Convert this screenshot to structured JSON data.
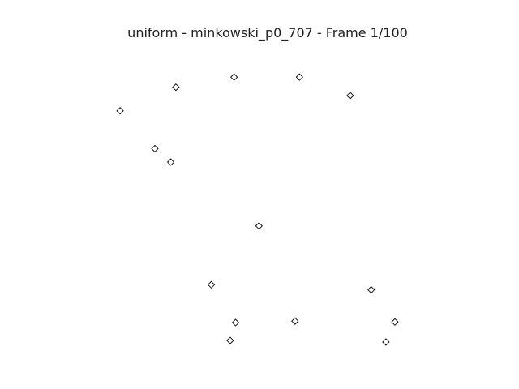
{
  "chart_data": {
    "type": "scatter",
    "title": "uniform - minkowski_p0_707 - Frame 1/100",
    "xlabel": "",
    "ylabel": "",
    "xlim": [
      0,
      1
    ],
    "ylim": [
      0,
      1
    ],
    "grid": false,
    "legend": "none",
    "axes_visible": false,
    "marker": "diamond",
    "marker_fill": "#ffffff",
    "marker_edge": "#000000",
    "points": [
      {
        "x": 0.197,
        "y": 0.865
      },
      {
        "x": 0.391,
        "y": 0.899
      },
      {
        "x": 0.609,
        "y": 0.899
      },
      {
        "x": 0.778,
        "y": 0.837
      },
      {
        "x": 0.011,
        "y": 0.786
      },
      {
        "x": 0.127,
        "y": 0.659
      },
      {
        "x": 0.18,
        "y": 0.614
      },
      {
        "x": 0.474,
        "y": 0.4
      },
      {
        "x": 0.315,
        "y": 0.203
      },
      {
        "x": 0.848,
        "y": 0.186
      },
      {
        "x": 0.396,
        "y": 0.076
      },
      {
        "x": 0.594,
        "y": 0.081
      },
      {
        "x": 0.927,
        "y": 0.078
      },
      {
        "x": 0.378,
        "y": 0.016
      },
      {
        "x": 0.897,
        "y": 0.011
      }
    ]
  }
}
